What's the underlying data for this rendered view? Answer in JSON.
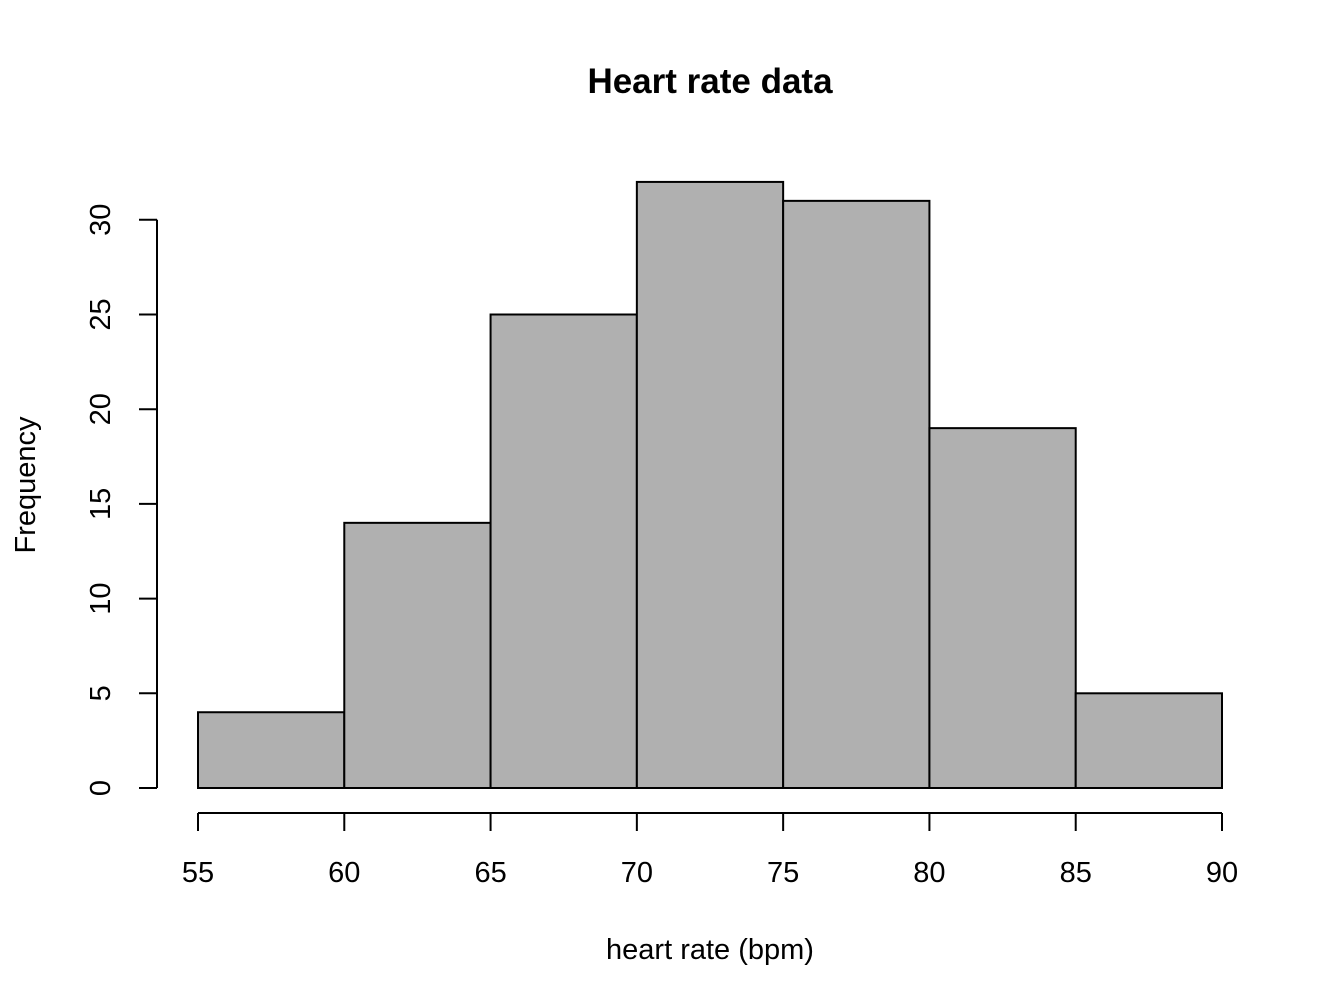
{
  "chart_data": {
    "type": "bar",
    "subtype": "histogram",
    "title": "Heart rate data",
    "xlabel": "heart rate (bpm)",
    "ylabel": "Frequency",
    "bins": [
      {
        "from": 55,
        "to": 60,
        "count": 4
      },
      {
        "from": 60,
        "to": 65,
        "count": 14
      },
      {
        "from": 65,
        "to": 70,
        "count": 25
      },
      {
        "from": 70,
        "to": 75,
        "count": 32
      },
      {
        "from": 75,
        "to": 80,
        "count": 31
      },
      {
        "from": 80,
        "to": 85,
        "count": 19
      },
      {
        "from": 85,
        "to": 90,
        "count": 5
      }
    ],
    "x_ticks": [
      55,
      60,
      65,
      70,
      75,
      80,
      85,
      90
    ],
    "y_ticks": [
      0,
      5,
      10,
      15,
      20,
      25,
      30
    ],
    "xlim": [
      55,
      90
    ],
    "ylim": [
      0,
      32
    ],
    "grid": false,
    "bar_fill": "#b0b0b0",
    "bar_edge": "#000000"
  }
}
